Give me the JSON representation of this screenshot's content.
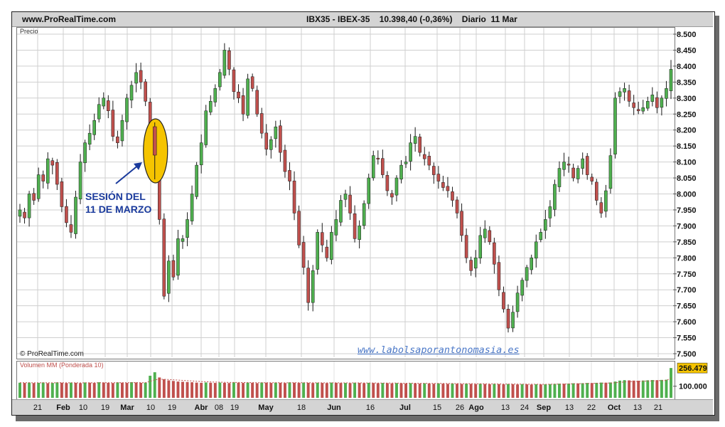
{
  "header": {
    "site": "www.ProRealTime.com",
    "info": "IBX35 - IBEX-35    10.398,40 (-0,36%)    Diario  11 Mar"
  },
  "price_panel": {
    "label": "Precio",
    "copyright": "© ProRealTime.com"
  },
  "volume_panel": {
    "label": "Volumen MM (Ponderada 10)",
    "last_value": "256.479",
    "tick": "100.000"
  },
  "watermark": "www.labolsaporantonomasia.es",
  "annotation": {
    "line1": "SESIÓN DEL",
    "line2": "11 DE MARZO"
  },
  "colors": {
    "up": "#4fb04f",
    "down": "#c0504d",
    "grid": "#cfcfcf",
    "highlight_ellipse": "#f5c400",
    "arrow": "#1a3a9c"
  },
  "chart_data": {
    "type": "candlestick",
    "y_ticks": [
      "8.500",
      "8.450",
      "8.400",
      "8.350",
      "8.300",
      "8.250",
      "8.200",
      "8.150",
      "8.100",
      "8.050",
      "8.000",
      "7.950",
      "7.900",
      "7.850",
      "7.800",
      "7.750",
      "7.700",
      "7.650",
      "7.600",
      "7.550",
      "7.500"
    ],
    "ylim": [
      7500,
      8500
    ],
    "x_ticks": [
      {
        "label": "21",
        "bold": false
      },
      {
        "label": "Feb",
        "bold": true
      },
      {
        "label": "10",
        "bold": false
      },
      {
        "label": "19",
        "bold": false
      },
      {
        "label": "Mar",
        "bold": true
      },
      {
        "label": "10",
        "bold": false
      },
      {
        "label": "19",
        "bold": false
      },
      {
        "label": "Abr",
        "bold": true
      },
      {
        "label": "08",
        "bold": false
      },
      {
        "label": "19",
        "bold": false
      },
      {
        "label": "May",
        "bold": true
      },
      {
        "label": "18",
        "bold": false
      },
      {
        "label": "Jun",
        "bold": true
      },
      {
        "label": "16",
        "bold": false
      },
      {
        "label": "Jul",
        "bold": true
      },
      {
        "label": "15",
        "bold": false
      },
      {
        "label": "26",
        "bold": false
      },
      {
        "label": "Ago",
        "bold": true
      },
      {
        "label": "13",
        "bold": false
      },
      {
        "label": "24",
        "bold": false
      },
      {
        "label": "Sep",
        "bold": true
      },
      {
        "label": "13",
        "bold": false
      },
      {
        "label": "22",
        "bold": false
      },
      {
        "label": "Oct",
        "bold": true
      },
      {
        "label": "13",
        "bold": false
      },
      {
        "label": "21",
        "bold": false
      }
    ],
    "close_path": [
      7950,
      7925,
      8000,
      7980,
      8060,
      8040,
      8110,
      8090,
      8030,
      7960,
      7910,
      7880,
      7990,
      8100,
      8160,
      8190,
      8230,
      8280,
      8300,
      8260,
      8180,
      8160,
      8230,
      8300,
      8340,
      8380,
      8350,
      8290,
      8200,
      8120,
      7920,
      7680,
      7790,
      7740,
      7860,
      7860,
      7920,
      8000,
      8090,
      8160,
      8260,
      8290,
      8330,
      8380,
      8450,
      8390,
      8320,
      8300,
      8250,
      8360,
      8330,
      8250,
      8190,
      8140,
      8170,
      8210,
      8130,
      8070,
      8040,
      7940,
      7840,
      7770,
      7660,
      7760,
      7880,
      7840,
      7800,
      7880,
      7920,
      7980,
      8000,
      7940,
      7860,
      7900,
      7970,
      8050,
      8120,
      8110,
      8060,
      8010,
      7990,
      8050,
      8090,
      8100,
      8160,
      8180,
      8130,
      8110,
      8090,
      8060,
      8040,
      8020,
      8010,
      7980,
      7940,
      7870,
      7800,
      7760,
      7800,
      7870,
      7890,
      7850,
      7780,
      7700,
      7640,
      7580,
      7630,
      7690,
      7730,
      7770,
      7800,
      7850,
      7880,
      7920,
      7960,
      8030,
      8080,
      8100,
      8090,
      8050,
      8080,
      8110,
      8060,
      8040,
      7980,
      7940,
      8010,
      8120,
      8300,
      8320,
      8330,
      8290,
      8270,
      8260,
      8270,
      8290,
      8310,
      8270,
      8300,
      8330,
      8390
    ],
    "volume": {
      "ylim": [
        0,
        300000
      ],
      "last": 256479,
      "values": [
        130000,
        128000,
        131000,
        127000,
        129000,
        132000,
        126000,
        128000,
        133000,
        130000,
        127000,
        131000,
        129000,
        126000,
        132000,
        130000,
        128000,
        134000,
        131000,
        129000,
        127000,
        133000,
        130000,
        128000,
        135000,
        132000,
        129000,
        131000,
        190000,
        220000,
        175000,
        160000,
        150000,
        145000,
        140000,
        138000,
        136000,
        134000,
        131000,
        129000,
        132000,
        130000,
        128000,
        131000,
        129000,
        127000,
        133000,
        130000,
        128000,
        131000,
        129000,
        126000,
        132000,
        130000,
        128000,
        131000,
        129000,
        127000,
        133000,
        130000,
        128000,
        131000,
        129000,
        127000,
        130000,
        128000,
        126000,
        131000,
        129000,
        127000,
        128000,
        126000,
        130000,
        128000,
        126000,
        129000,
        127000,
        125000,
        128000,
        126000,
        124000,
        127000,
        125000,
        123000,
        126000,
        124000,
        122000,
        125000,
        123000,
        121000,
        124000,
        122000,
        120000,
        123000,
        121000,
        119000,
        122000,
        120000,
        118000,
        121000,
        119000,
        117000,
        120000,
        118000,
        116000,
        119000,
        117000,
        115000,
        118000,
        116000,
        114000,
        117000,
        115000,
        116000,
        118000,
        120000,
        122000,
        121000,
        123000,
        125000,
        124000,
        126000,
        128000,
        127000,
        129000,
        131000,
        130000,
        132000,
        140000,
        148000,
        152000,
        150000,
        148000,
        147000,
        149000,
        151000,
        153000,
        152000,
        154000,
        156000,
        256479
      ]
    }
  }
}
